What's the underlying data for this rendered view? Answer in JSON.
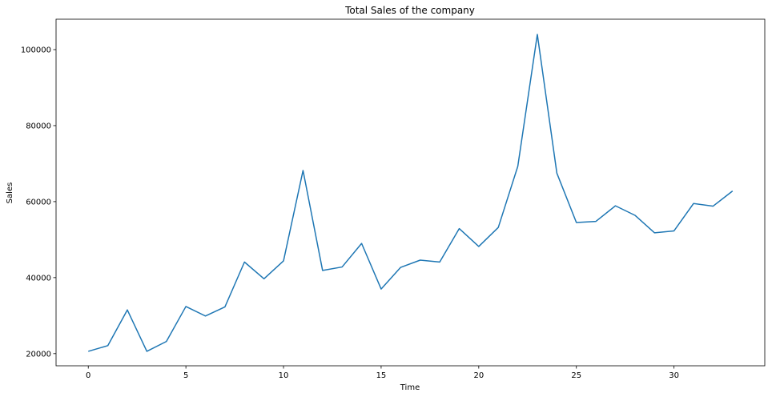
{
  "chart_data": {
    "type": "line",
    "title": "Total Sales of the company",
    "xlabel": "Time",
    "ylabel": "Sales",
    "xlim": [
      -1.65,
      34.65
    ],
    "ylim": [
      16800,
      108000
    ],
    "xticks": [
      0,
      5,
      10,
      15,
      20,
      25,
      30
    ],
    "yticks": [
      20000,
      40000,
      60000,
      80000,
      100000
    ],
    "grid": false,
    "color": "#1f77b4",
    "x": [
      0,
      1,
      2,
      3,
      4,
      5,
      6,
      7,
      8,
      9,
      10,
      11,
      12,
      13,
      14,
      15,
      16,
      17,
      18,
      19,
      20,
      21,
      22,
      23,
      24,
      25,
      26,
      27,
      28,
      29,
      30,
      31,
      32,
      33
    ],
    "series": [
      {
        "values": [
          20600,
          22100,
          31500,
          20600,
          23200,
          32400,
          29900,
          32300,
          44100,
          39700,
          44400,
          68200,
          41900,
          42800,
          49000,
          37000,
          42700,
          44600,
          44100,
          52900,
          48200,
          53200,
          69300,
          104000,
          67500,
          54500,
          54800,
          58900,
          56400,
          51800,
          52300,
          59500,
          58800,
          62800
        ]
      }
    ]
  }
}
